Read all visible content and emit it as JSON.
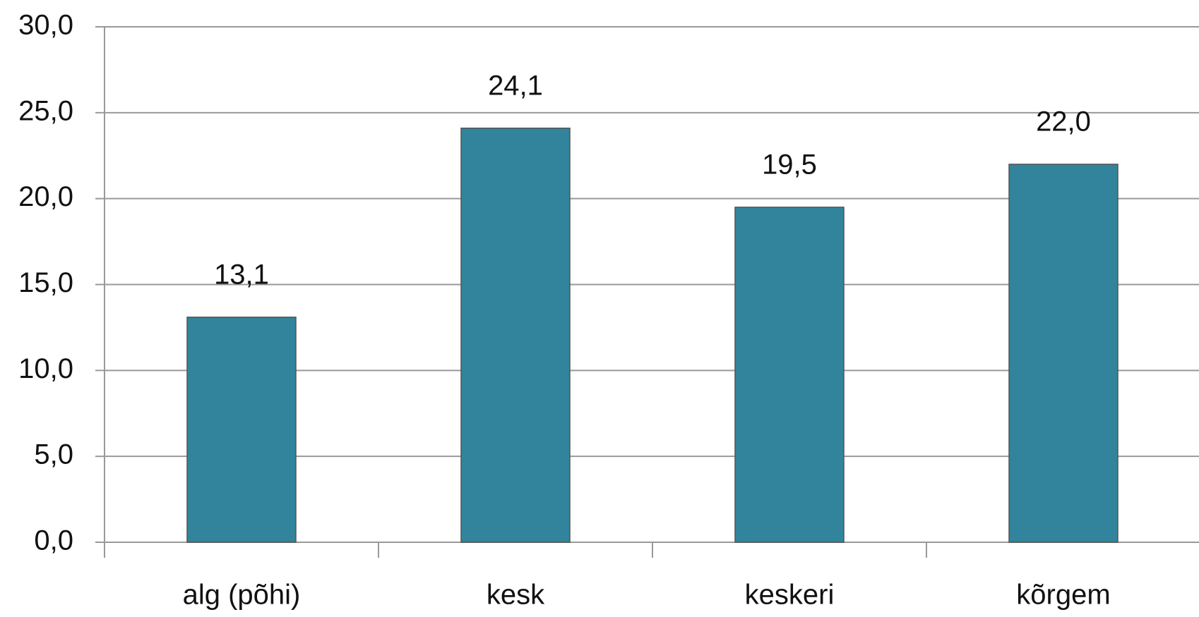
{
  "chart_data": {
    "type": "bar",
    "categories": [
      "alg (põhi)",
      "kesk",
      "keskeri",
      "kõrgem"
    ],
    "values": [
      13.1,
      24.1,
      19.5,
      22.0
    ],
    "value_labels": [
      "13,1",
      "24,1",
      "19,5",
      "22,0"
    ],
    "color": "#31849b",
    "ylim": [
      0,
      30
    ],
    "yticks": [
      {
        "value": 0,
        "label": "0,0"
      },
      {
        "value": 5,
        "label": "5,0"
      },
      {
        "value": 10,
        "label": "10,0"
      },
      {
        "value": 15,
        "label": "15,0"
      },
      {
        "value": 20,
        "label": "20,0"
      },
      {
        "value": 25,
        "label": "25,0"
      },
      {
        "value": 30,
        "label": "30,0"
      }
    ],
    "grid": true
  }
}
